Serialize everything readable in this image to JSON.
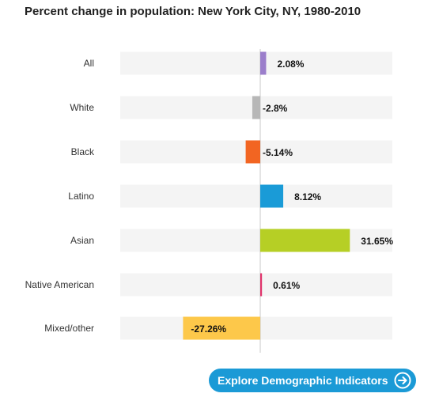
{
  "chart_data": {
    "type": "bar",
    "orientation": "horizontal",
    "title": "Percent change in population: New York City, NY, 1980-2010",
    "categories": [
      "All",
      "White",
      "Black",
      "Latino",
      "Asian",
      "Native American",
      "Mixed/other"
    ],
    "values": [
      2.08,
      -2.8,
      -5.14,
      8.12,
      31.65,
      0.61,
      -27.26
    ],
    "value_labels": [
      "2.08%",
      "-2.8%",
      "-5.14%",
      "8.12%",
      "31.65%",
      "0.61%",
      "-27.26%"
    ],
    "colors": [
      "#9b7ecb",
      "#b7b7b7",
      "#f26522",
      "#1a9bd7",
      "#b6cf25",
      "#e0336b",
      "#fdc84a"
    ],
    "xlim": [
      -27.26,
      45
    ],
    "zero_line": true,
    "grid": false,
    "legend": "none"
  },
  "cta": {
    "label": "Explore Demographic Indicators",
    "icon": "arrow-right-circle-icon"
  }
}
